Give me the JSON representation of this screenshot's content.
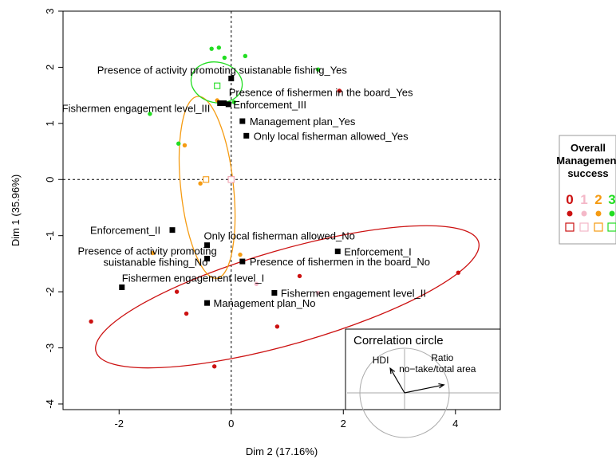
{
  "chart_data": {
    "type": "scatter",
    "xlabel": "Dim 2 (17.16%)",
    "ylabel": "Dim 1 (35.96%)",
    "xlim": [
      -3.0,
      4.8
    ],
    "ylim": [
      -4.1,
      3.0
    ],
    "x_ticks": [
      -2,
      0,
      2,
      4
    ],
    "y_ticks": [
      -4,
      -3,
      -2,
      -1,
      0,
      1,
      2,
      3
    ],
    "reference_lines": {
      "x": 0,
      "y": 0,
      "style": "dashed"
    },
    "variable_categories": [
      {
        "label": "Presence of activity promoting suistanable fishing_Yes",
        "x": 0.0,
        "y": 1.8
      },
      {
        "label": "Presence of fishermen in the board_Yes",
        "x": -0.2,
        "y": 1.36
      },
      {
        "label": "Enforcement_III",
        "x": -0.05,
        "y": 1.34
      },
      {
        "label": "Fishermen engagement level_III",
        "x": -0.13,
        "y": 1.36
      },
      {
        "label": "Management plan_Yes",
        "x": 0.2,
        "y": 1.04
      },
      {
        "label": "Only local fisherman allowed_Yes",
        "x": 0.27,
        "y": 0.78
      },
      {
        "label": "Enforcement_II",
        "x": -1.05,
        "y": -0.9
      },
      {
        "label": "Only local fisherman allowed_No",
        "x": -0.43,
        "y": -1.17
      },
      {
        "label": "Enforcement_I",
        "x": 1.9,
        "y": -1.28
      },
      {
        "label": "Presence of activity promoting\nsuistanable fishing_No",
        "x": -0.43,
        "y": -1.41
      },
      {
        "label": "Presence of fishermen in the board_No",
        "x": 0.2,
        "y": -1.46
      },
      {
        "label": "Fishermen engagement level_I",
        "x": -1.95,
        "y": -1.92
      },
      {
        "label": "Fishermen engagement level_II",
        "x": 0.77,
        "y": -2.02
      },
      {
        "label": "Management plan_No",
        "x": -0.43,
        "y": -2.2
      }
    ],
    "series": [
      {
        "name": "0",
        "color": "#cc1111",
        "points": [
          {
            "x": -2.5,
            "y": -2.53
          },
          {
            "x": -0.97,
            "y": -2.0
          },
          {
            "x": -0.8,
            "y": -2.39
          },
          {
            "x": -0.3,
            "y": -3.33
          },
          {
            "x": 0.82,
            "y": -2.62
          },
          {
            "x": 1.22,
            "y": -1.72
          },
          {
            "x": 1.93,
            "y": 1.58
          },
          {
            "x": 4.05,
            "y": -1.66
          }
        ],
        "centroid": {
          "x": 0.0,
          "y": 0.0
        },
        "ellipse": {
          "cx": 1.0,
          "cy": -2.09,
          "rx": 3.55,
          "ry": 0.84,
          "angle_deg": 16
        }
      },
      {
        "name": "1",
        "color": "#f4b8c8",
        "points": [
          {
            "x": 0.45,
            "y": -1.86
          },
          {
            "x": 1.55,
            "y": -2.02
          }
        ],
        "centroid": {
          "x": 0.0,
          "y": 0.0
        },
        "ellipse": null
      },
      {
        "name": "2",
        "color": "#f59b12",
        "points": [
          {
            "x": -0.83,
            "y": 0.61
          },
          {
            "x": -0.55,
            "y": -0.07
          },
          {
            "x": 0.16,
            "y": -1.34
          },
          {
            "x": -1.4,
            "y": -1.31
          },
          {
            "x": -0.25,
            "y": 1.41
          }
        ],
        "centroid": {
          "x": -0.45,
          "y": 0.0
        },
        "ellipse": {
          "cx": -0.43,
          "cy": -0.14,
          "rx": 0.47,
          "ry": 1.63,
          "angle_deg": 6
        }
      },
      {
        "name": "3",
        "color": "#22dd22",
        "points": [
          {
            "x": -0.35,
            "y": 2.33
          },
          {
            "x": -0.22,
            "y": 2.35
          },
          {
            "x": -0.12,
            "y": 2.17
          },
          {
            "x": 0.25,
            "y": 2.2
          },
          {
            "x": 1.55,
            "y": 1.96
          },
          {
            "x": -1.45,
            "y": 1.17
          },
          {
            "x": -0.94,
            "y": 0.64
          },
          {
            "x": 0.05,
            "y": 1.38
          }
        ],
        "centroid": {
          "x": -0.25,
          "y": 1.67
        },
        "ellipse": {
          "cx": -0.26,
          "cy": 1.73,
          "rx": 0.46,
          "ry": 0.36,
          "angle_deg": -12
        }
      }
    ],
    "legend": {
      "title_lines": [
        "Overall",
        "Management",
        "success"
      ],
      "classes": [
        "0",
        "1",
        "2",
        "3"
      ],
      "placement": "right"
    },
    "inset": {
      "title": "Correlation circle",
      "arrows": [
        {
          "label": "HDI",
          "dx": -0.32,
          "dy": 0.55
        },
        {
          "label_lines": [
            "Ratio",
            "no−take/total area"
          ],
          "dx": 0.88,
          "dy": 0.18
        }
      ]
    }
  }
}
